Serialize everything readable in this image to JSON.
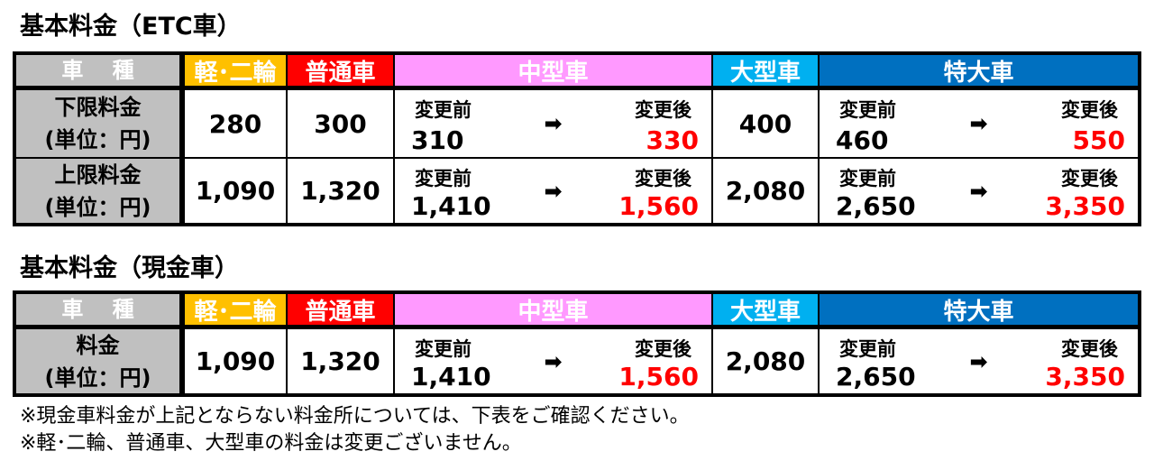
{
  "colors": {
    "kei": "#ffc000",
    "futsu": "#ff0000",
    "chugata": "#ff99ff",
    "ogata": "#00b0f0",
    "tokudai": "#0070c0",
    "label_bg": "#c0c0c0",
    "after_value": "#ff0000"
  },
  "headers": {
    "kind": "車　 種",
    "kei": "軽･二輪",
    "futsu": "普通車",
    "chugata": "中型車",
    "ogata": "大型車",
    "tokudai": "特大車"
  },
  "before_label": "変更前",
  "after_label": "変更後",
  "arrow_icon": "➡",
  "etc": {
    "title": "基本料金（ETC車）",
    "rows": [
      {
        "label1": "下限料金",
        "label2": "(単位：円)",
        "kei": "280",
        "futsu": "300",
        "chugata_before": "310",
        "chugata_after": "330",
        "ogata": "400",
        "tokudai_before": "460",
        "tokudai_after": "550"
      },
      {
        "label1": "上限料金",
        "label2": "(単位：円)",
        "kei": "1,090",
        "futsu": "1,320",
        "chugata_before": "1,410",
        "chugata_after": "1,560",
        "ogata": "2,080",
        "tokudai_before": "2,650",
        "tokudai_after": "3,350"
      }
    ]
  },
  "cash": {
    "title": "基本料金（現金車）",
    "rows": [
      {
        "label1": "料金",
        "label2": "(単位：円)",
        "kei": "1,090",
        "futsu": "1,320",
        "chugata_before": "1,410",
        "chugata_after": "1,560",
        "ogata": "2,080",
        "tokudai_before": "2,650",
        "tokudai_after": "3,350"
      }
    ]
  },
  "notes": [
    "※現金車料金が上記とならない料金所については、下表をご確認ください。",
    "※軽･二輪、普通車、大型車の料金は変更ございません。"
  ]
}
